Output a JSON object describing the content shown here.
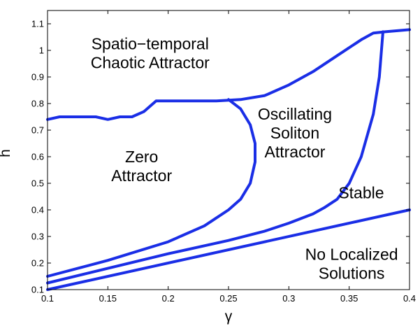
{
  "chart_data": {
    "type": "line",
    "xlabel": "γ",
    "ylabel": "h",
    "xlim": [
      0.1,
      0.4
    ],
    "ylim": [
      0.1,
      1.15
    ],
    "xticks": [
      "0.1",
      "0.15",
      "0.2",
      "0.25",
      "0.3",
      "0.35",
      "0.4"
    ],
    "yticks": [
      "0.1",
      "0.2",
      "0.3",
      "0.4",
      "0.5",
      "0.6",
      "0.7",
      "0.8",
      "0.9",
      "1",
      "1.1"
    ],
    "grid": false,
    "line_color": "#1a2ee6",
    "series": [
      {
        "id": "chaos-boundary",
        "points": [
          [
            0.1,
            0.74
          ],
          [
            0.11,
            0.75
          ],
          [
            0.12,
            0.75
          ],
          [
            0.14,
            0.75
          ],
          [
            0.15,
            0.74
          ],
          [
            0.16,
            0.75
          ],
          [
            0.17,
            0.75
          ],
          [
            0.18,
            0.77
          ],
          [
            0.19,
            0.81
          ],
          [
            0.2,
            0.81
          ],
          [
            0.22,
            0.81
          ],
          [
            0.24,
            0.81
          ],
          [
            0.26,
            0.815
          ],
          [
            0.28,
            0.83
          ],
          [
            0.3,
            0.87
          ],
          [
            0.32,
            0.92
          ],
          [
            0.34,
            0.98
          ],
          [
            0.36,
            1.04
          ],
          [
            0.37,
            1.065
          ],
          [
            0.38,
            1.07
          ],
          [
            0.4,
            1.078
          ]
        ]
      },
      {
        "id": "oscillating-boundary",
        "points": [
          [
            0.25,
            0.815
          ],
          [
            0.26,
            0.78
          ],
          [
            0.268,
            0.72
          ],
          [
            0.272,
            0.65
          ],
          [
            0.272,
            0.58
          ],
          [
            0.268,
            0.5
          ],
          [
            0.26,
            0.44
          ],
          [
            0.25,
            0.4
          ],
          [
            0.24,
            0.37
          ],
          [
            0.23,
            0.34
          ],
          [
            0.2,
            0.28
          ],
          [
            0.15,
            0.21
          ],
          [
            0.1,
            0.15
          ]
        ]
      },
      {
        "id": "stable-boundary",
        "points": [
          [
            0.1,
            0.125
          ],
          [
            0.15,
            0.18
          ],
          [
            0.2,
            0.235
          ],
          [
            0.25,
            0.285
          ],
          [
            0.28,
            0.32
          ],
          [
            0.3,
            0.35
          ],
          [
            0.32,
            0.385
          ],
          [
            0.33,
            0.41
          ],
          [
            0.34,
            0.44
          ],
          [
            0.35,
            0.5
          ],
          [
            0.36,
            0.6
          ],
          [
            0.37,
            0.76
          ],
          [
            0.375,
            0.9
          ],
          [
            0.378,
            1.07
          ]
        ]
      },
      {
        "id": "localized-boundary",
        "points": [
          [
            0.1,
            0.1
          ],
          [
            0.4,
            0.4
          ]
        ]
      }
    ],
    "annotations": [
      {
        "id": "chaotic",
        "lines": [
          "Spatio−temporal",
          "Chaotic Attractor"
        ],
        "x": 0.185,
        "y": 0.99
      },
      {
        "id": "oscillating",
        "lines": [
          "Oscillating",
          "Soliton",
          "Attractor"
        ],
        "x": 0.305,
        "y": 0.69
      },
      {
        "id": "zero",
        "lines": [
          "Zero",
          "Attractor"
        ],
        "x": 0.178,
        "y": 0.565
      },
      {
        "id": "stable",
        "lines": [
          "Stable"
        ],
        "x": 0.36,
        "y": 0.465
      },
      {
        "id": "no-localized",
        "lines": [
          "No Localized",
          "Solutions"
        ],
        "x": 0.352,
        "y": 0.198
      }
    ]
  }
}
